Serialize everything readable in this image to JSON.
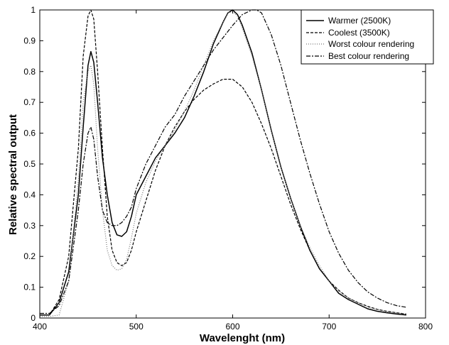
{
  "chart_data": {
    "type": "line",
    "xlabel": "Wavelenght (nm)",
    "ylabel": "Relative spectral output",
    "xlim": [
      400,
      800
    ],
    "ylim": [
      0,
      1
    ],
    "x_ticks": [
      "400",
      "500",
      "600",
      "700",
      "800"
    ],
    "y_ticks": [
      "0",
      "0.1",
      "0.2",
      "0.3",
      "0.4",
      "0.5",
      "0.6",
      "0.7",
      "0.8",
      "0.9",
      "1"
    ],
    "grid": false,
    "legend_position": "top-right",
    "series": [
      {
        "name": "Warmer (2500K)",
        "dash": "solid",
        "x": [
          400,
          410,
          420,
          430,
          440,
          445,
          450,
          453,
          456,
          460,
          465,
          470,
          475,
          480,
          485,
          490,
          495,
          500,
          510,
          520,
          530,
          540,
          550,
          560,
          570,
          580,
          590,
          595,
          600,
          605,
          610,
          620,
          630,
          640,
          650,
          660,
          670,
          680,
          690,
          700,
          710,
          720,
          730,
          740,
          750,
          760,
          770,
          780
        ],
        "y": [
          0.01,
          0.01,
          0.05,
          0.15,
          0.4,
          0.62,
          0.82,
          0.865,
          0.83,
          0.7,
          0.52,
          0.4,
          0.31,
          0.27,
          0.265,
          0.28,
          0.33,
          0.4,
          0.46,
          0.52,
          0.56,
          0.6,
          0.65,
          0.72,
          0.8,
          0.89,
          0.96,
          0.99,
          1.0,
          0.985,
          0.95,
          0.86,
          0.74,
          0.61,
          0.49,
          0.39,
          0.3,
          0.22,
          0.16,
          0.12,
          0.08,
          0.06,
          0.045,
          0.03,
          0.022,
          0.017,
          0.013,
          0.01
        ]
      },
      {
        "name": "Coolest (3500K)",
        "dash": "dashed",
        "x": [
          400,
          410,
          420,
          430,
          440,
          445,
          450,
          453,
          456,
          460,
          465,
          470,
          475,
          480,
          485,
          490,
          495,
          500,
          510,
          520,
          530,
          540,
          550,
          560,
          570,
          580,
          590,
          600,
          610,
          620,
          630,
          640,
          650,
          660,
          670,
          680,
          690,
          700,
          710,
          720,
          730,
          740,
          750,
          760,
          770,
          780
        ],
        "y": [
          0.01,
          0.01,
          0.06,
          0.2,
          0.55,
          0.85,
          0.98,
          1.0,
          0.97,
          0.8,
          0.55,
          0.33,
          0.22,
          0.18,
          0.17,
          0.18,
          0.22,
          0.28,
          0.38,
          0.48,
          0.56,
          0.62,
          0.67,
          0.71,
          0.74,
          0.76,
          0.775,
          0.775,
          0.75,
          0.7,
          0.63,
          0.55,
          0.46,
          0.37,
          0.29,
          0.22,
          0.16,
          0.12,
          0.09,
          0.065,
          0.05,
          0.038,
          0.028,
          0.022,
          0.017,
          0.013
        ]
      },
      {
        "name": "Worst colour rendering",
        "dash": "dotted",
        "x": [
          400,
          410,
          420,
          430,
          440,
          445,
          450,
          453,
          456,
          460,
          465,
          470,
          475,
          480,
          485,
          490,
          495,
          500,
          510,
          520,
          530,
          540,
          550,
          560,
          570,
          580,
          590,
          595,
          600,
          605,
          610,
          620,
          630,
          640,
          650,
          660,
          670,
          680,
          690,
          700,
          710,
          720,
          730,
          740,
          750,
          760,
          770,
          780
        ],
        "y": [
          0.005,
          0.005,
          0.01,
          0.12,
          0.45,
          0.7,
          0.8,
          0.82,
          0.76,
          0.55,
          0.35,
          0.22,
          0.17,
          0.155,
          0.16,
          0.19,
          0.26,
          0.34,
          0.44,
          0.51,
          0.56,
          0.61,
          0.67,
          0.74,
          0.82,
          0.9,
          0.96,
          0.99,
          0.995,
          0.98,
          0.94,
          0.85,
          0.74,
          0.61,
          0.49,
          0.39,
          0.3,
          0.23,
          0.17,
          0.12,
          0.085,
          0.065,
          0.05,
          0.035,
          0.027,
          0.02,
          0.016,
          0.012
        ]
      },
      {
        "name": "Best colour rendering",
        "dash": "dash-dot",
        "x": [
          400,
          410,
          420,
          430,
          440,
          445,
          450,
          453,
          456,
          460,
          465,
          470,
          475,
          480,
          485,
          490,
          495,
          500,
          510,
          520,
          530,
          540,
          550,
          560,
          570,
          580,
          590,
          600,
          610,
          620,
          625,
          630,
          640,
          650,
          660,
          670,
          680,
          690,
          700,
          710,
          720,
          730,
          740,
          750,
          760,
          770,
          780
        ],
        "y": [
          0.015,
          0.015,
          0.04,
          0.12,
          0.35,
          0.5,
          0.6,
          0.62,
          0.58,
          0.46,
          0.35,
          0.31,
          0.3,
          0.3,
          0.31,
          0.33,
          0.36,
          0.42,
          0.5,
          0.56,
          0.62,
          0.66,
          0.72,
          0.77,
          0.82,
          0.87,
          0.91,
          0.95,
          0.985,
          1.0,
          1.0,
          0.99,
          0.92,
          0.82,
          0.7,
          0.58,
          0.47,
          0.37,
          0.28,
          0.21,
          0.155,
          0.115,
          0.085,
          0.065,
          0.05,
          0.04,
          0.035
        ]
      }
    ]
  }
}
